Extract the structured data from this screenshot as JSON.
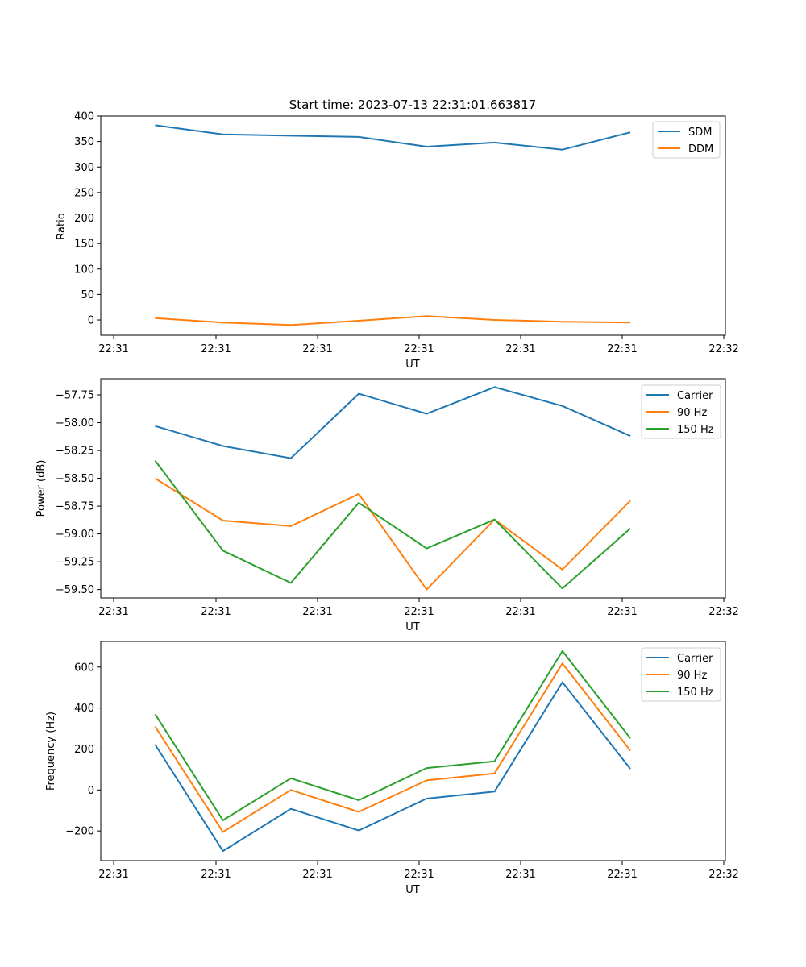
{
  "figure": {
    "title": "Start time: 2023-07-13 22:31:01.663817"
  },
  "chart_data": [
    {
      "type": "line",
      "title": "Start time: 2023-07-13 22:31:01.663817",
      "xlabel": "UT",
      "ylabel": "Ratio",
      "x_ticks": [
        "22:31",
        "22:31",
        "22:31",
        "22:31",
        "22:31",
        "22:31",
        "22:32"
      ],
      "y_ticks": [
        0,
        50,
        100,
        150,
        200,
        250,
        300,
        350,
        400
      ],
      "ylim": [
        -30,
        400
      ],
      "x": [
        1,
        2,
        3,
        4,
        5,
        6,
        7,
        8
      ],
      "xlim": [
        0.2,
        9.4
      ],
      "legend": "top-right",
      "series": [
        {
          "name": "SDM",
          "color": "#1f77b4",
          "values": [
            382,
            364,
            361.5,
            359,
            340,
            348,
            334,
            368
          ]
        },
        {
          "name": "DDM",
          "color": "#ff7f0e",
          "values": [
            3.5,
            -5,
            -10,
            -1.5,
            7.5,
            0,
            -3.5,
            -5
          ]
        }
      ]
    },
    {
      "type": "line",
      "title": "",
      "xlabel": "UT",
      "ylabel": "Power (dB)",
      "x_ticks": [
        "22:31",
        "22:31",
        "22:31",
        "22:31",
        "22:31",
        "22:31",
        "22:32"
      ],
      "y_ticks": [
        -59.5,
        -59.25,
        -59.0,
        -58.75,
        -58.5,
        -58.25,
        -58.0,
        -57.75
      ],
      "ylim": [
        -59.575,
        -57.605
      ],
      "x": [
        1,
        2,
        3,
        4,
        5,
        6,
        7,
        8
      ],
      "xlim": [
        0.2,
        9.4
      ],
      "legend": "top-right",
      "series": [
        {
          "name": "Carrier",
          "color": "#1f77b4",
          "values": [
            -58.03,
            -58.21,
            -58.32,
            -57.74,
            -57.92,
            -57.68,
            -57.85,
            -58.12
          ]
        },
        {
          "name": "90 Hz",
          "color": "#ff7f0e",
          "values": [
            -58.5,
            -58.88,
            -58.93,
            -58.64,
            -59.5,
            -58.87,
            -59.32,
            -58.7
          ]
        },
        {
          "name": "150 Hz",
          "color": "#2ca02c",
          "values": [
            -58.34,
            -59.15,
            -59.44,
            -58.72,
            -59.13,
            -58.87,
            -59.49,
            -58.95
          ]
        }
      ]
    },
    {
      "type": "line",
      "title": "",
      "xlabel": "UT",
      "ylabel": "Frequency (Hz)",
      "x_ticks": [
        "22:31",
        "22:31",
        "22:31",
        "22:31",
        "22:31",
        "22:31",
        "22:32"
      ],
      "y_ticks": [
        -200,
        0,
        200,
        400,
        600
      ],
      "ylim": [
        -345,
        725
      ],
      "x": [
        1,
        2,
        3,
        4,
        5,
        6,
        7,
        8
      ],
      "xlim": [
        0.2,
        9.4
      ],
      "legend": "top-right",
      "series": [
        {
          "name": "Carrier",
          "color": "#1f77b4",
          "values": [
            222,
            -298,
            -92,
            -198,
            -42,
            -8,
            526,
            103
          ]
        },
        {
          "name": "90 Hz",
          "color": "#ff7f0e",
          "values": [
            310,
            -205,
            0,
            -107,
            47,
            81,
            618,
            192
          ]
        },
        {
          "name": "150 Hz",
          "color": "#2ca02c",
          "values": [
            370,
            -148,
            57,
            -50,
            107,
            140,
            678,
            252
          ]
        }
      ]
    }
  ]
}
